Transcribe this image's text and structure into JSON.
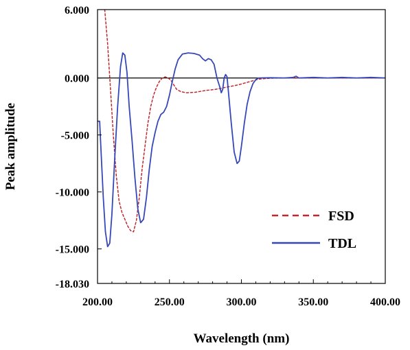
{
  "chart_data": {
    "type": "line",
    "xlabel": "Wavelength (nm)",
    "ylabel": "Peak amplitude",
    "xlim": [
      200,
      400
    ],
    "ylim": [
      -18.03,
      6.0
    ],
    "x_ticks": [
      200,
      250,
      300,
      350,
      400
    ],
    "x_tick_labels": [
      "200.00",
      "250.00",
      "300.00",
      "350.00",
      "400.00"
    ],
    "y_ticks": [
      6.0,
      0.0,
      -5.0,
      -10.0,
      -15.0,
      -18.03
    ],
    "y_tick_labels": [
      "6.000",
      "0.000",
      "-5.000",
      "-10.000",
      "-15.000",
      "-18.030"
    ],
    "grid": false,
    "legend_position": "bottom-right",
    "zero_line": true,
    "series": [
      {
        "name": "FSD",
        "color": "#c0282d",
        "dash": "dashed",
        "points": [
          [
            205,
            6.0
          ],
          [
            207,
            3.0
          ],
          [
            209,
            -1.0
          ],
          [
            211,
            -5.0
          ],
          [
            213,
            -8.5
          ],
          [
            215,
            -10.8
          ],
          [
            217,
            -11.8
          ],
          [
            219,
            -12.4
          ],
          [
            221,
            -13.0
          ],
          [
            223,
            -13.4
          ],
          [
            225,
            -13.5
          ],
          [
            227,
            -12.5
          ],
          [
            229,
            -10.5
          ],
          [
            231,
            -8.0
          ],
          [
            233,
            -6.0
          ],
          [
            235,
            -4.0
          ],
          [
            237,
            -2.5
          ],
          [
            239,
            -1.5
          ],
          [
            241,
            -0.8
          ],
          [
            243,
            -0.3
          ],
          [
            245,
            0.0
          ],
          [
            247,
            0.1
          ],
          [
            249,
            0.0
          ],
          [
            251,
            -0.2
          ],
          [
            253,
            -0.6
          ],
          [
            255,
            -1.0
          ],
          [
            258,
            -1.2
          ],
          [
            262,
            -1.3
          ],
          [
            268,
            -1.25
          ],
          [
            275,
            -1.1
          ],
          [
            282,
            -1.0
          ],
          [
            290,
            -0.8
          ],
          [
            298,
            -0.6
          ],
          [
            305,
            -0.35
          ],
          [
            312,
            -0.1
          ],
          [
            320,
            -0.02
          ],
          [
            330,
            0.0
          ],
          [
            340,
            0.0
          ],
          [
            360,
            0.0
          ],
          [
            380,
            0.0
          ],
          [
            400,
            0.0
          ]
        ]
      },
      {
        "name": "TDL",
        "color": "#3547b8",
        "dash": "solid",
        "points": [
          [
            200,
            -3.8
          ],
          [
            201.5,
            -3.8
          ],
          [
            202.5,
            -6.5
          ],
          [
            204,
            -10.5
          ],
          [
            205.5,
            -13.5
          ],
          [
            207,
            -14.8
          ],
          [
            208.5,
            -14.5
          ],
          [
            210,
            -12.0
          ],
          [
            212,
            -7.0
          ],
          [
            214,
            -2.5
          ],
          [
            216,
            1.0
          ],
          [
            217.5,
            2.2
          ],
          [
            219,
            2.0
          ],
          [
            220.5,
            0.5
          ],
          [
            222,
            -2.5
          ],
          [
            224,
            -5.5
          ],
          [
            226,
            -8.8
          ],
          [
            228,
            -11.5
          ],
          [
            230,
            -12.7
          ],
          [
            232,
            -12.4
          ],
          [
            234,
            -10.5
          ],
          [
            236,
            -8.0
          ],
          [
            238,
            -6.0
          ],
          [
            240,
            -4.8
          ],
          [
            242,
            -3.8
          ],
          [
            244,
            -3.2
          ],
          [
            246,
            -3.0
          ],
          [
            248,
            -2.5
          ],
          [
            250,
            -1.5
          ],
          [
            252,
            -0.3
          ],
          [
            254,
            0.8
          ],
          [
            256,
            1.6
          ],
          [
            259,
            2.1
          ],
          [
            263,
            2.2
          ],
          [
            267,
            2.15
          ],
          [
            271,
            2.0
          ],
          [
            273,
            1.7
          ],
          [
            275,
            1.5
          ],
          [
            277,
            1.7
          ],
          [
            279,
            1.6
          ],
          [
            281,
            1.2
          ],
          [
            283,
            0.0
          ],
          [
            285,
            -0.8
          ],
          [
            286,
            -1.3
          ],
          [
            287,
            -1.0
          ],
          [
            288,
            0.0
          ],
          [
            289,
            0.3
          ],
          [
            290,
            0.1
          ],
          [
            291,
            -1.2
          ],
          [
            293,
            -4.0
          ],
          [
            295,
            -6.5
          ],
          [
            297,
            -7.5
          ],
          [
            298.5,
            -7.3
          ],
          [
            300,
            -6.0
          ],
          [
            302,
            -4.0
          ],
          [
            304,
            -2.3
          ],
          [
            306,
            -1.2
          ],
          [
            308,
            -0.5
          ],
          [
            310,
            -0.15
          ],
          [
            312,
            0.0
          ],
          [
            320,
            0.02
          ],
          [
            330,
            0.0
          ],
          [
            336,
            0.05
          ],
          [
            338,
            0.15
          ],
          [
            340,
            0.0
          ],
          [
            350,
            0.05
          ],
          [
            360,
            0.0
          ],
          [
            370,
            0.05
          ],
          [
            380,
            0.0
          ],
          [
            390,
            0.05
          ],
          [
            400,
            0.0
          ]
        ]
      }
    ]
  }
}
